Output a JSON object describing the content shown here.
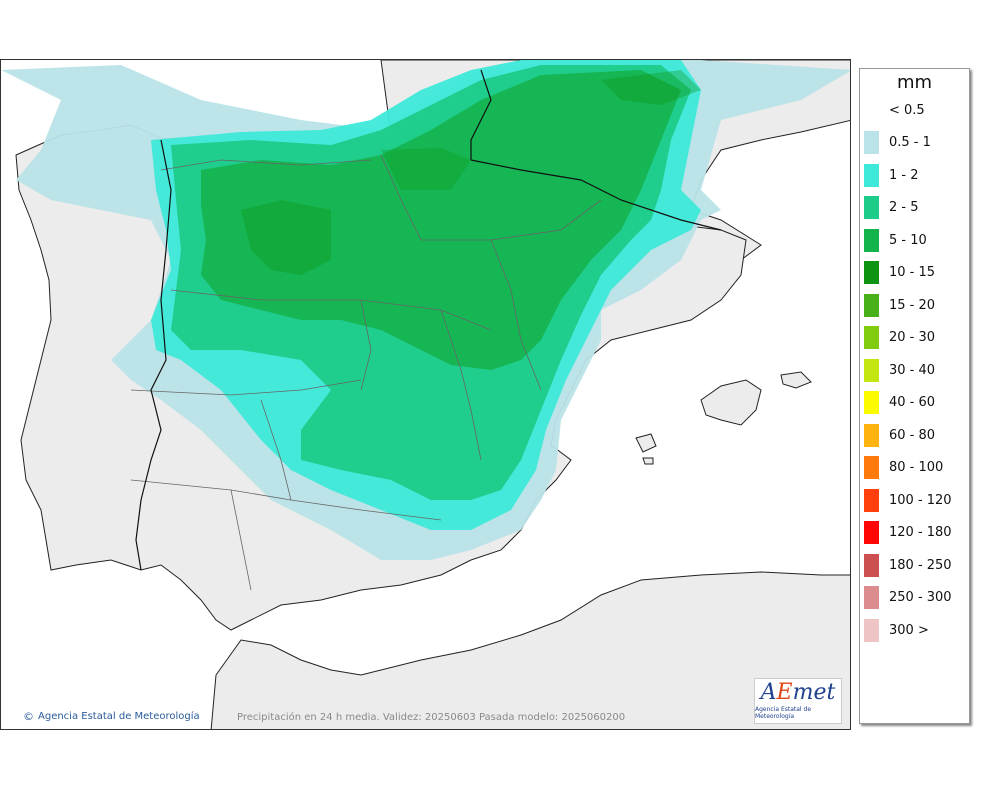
{
  "map": {
    "credit": "Agencia Estatal de Meteorología",
    "validity": "Precipitación en 24 h media. Validez: 20250603 Pasada modelo: 2025060200",
    "logo": {
      "mark_a": "A",
      "mark_e": "E",
      "mark_rest": "met",
      "subtitle": "Agencia Estatal de Meteorología"
    },
    "colors": {
      "sea": "#ffffff",
      "land": "#ececec",
      "relief": "#b0b0b0"
    }
  },
  "legend": {
    "unit": "mm",
    "items": [
      {
        "label": "< 0.5",
        "color": ""
      },
      {
        "label": "0.5 - 1",
        "color": "#b9e3e8"
      },
      {
        "label": "1 - 2",
        "color": "#3ee9d9"
      },
      {
        "label": "2 - 5",
        "color": "#1ecc89"
      },
      {
        "label": "5 - 10",
        "color": "#14b44c"
      },
      {
        "label": "10 - 15",
        "color": "#0e9412"
      },
      {
        "label": "15 - 20",
        "color": "#48b018"
      },
      {
        "label": "20 - 30",
        "color": "#82cc10"
      },
      {
        "label": "30 - 40",
        "color": "#c4e610"
      },
      {
        "label": "40 - 60",
        "color": "#fcfc00"
      },
      {
        "label": "60 - 80",
        "color": "#ffb30f"
      },
      {
        "label": "80 - 100",
        "color": "#ff7a0c"
      },
      {
        "label": "100 - 120",
        "color": "#ff400c"
      },
      {
        "label": "120 - 180",
        "color": "#ff0505"
      },
      {
        "label": "180 - 250",
        "color": "#cc5050"
      },
      {
        "label": "250 - 300",
        "color": "#dc8c8c"
      },
      {
        "label": "300 >",
        "color": "#efc4c4"
      }
    ]
  }
}
